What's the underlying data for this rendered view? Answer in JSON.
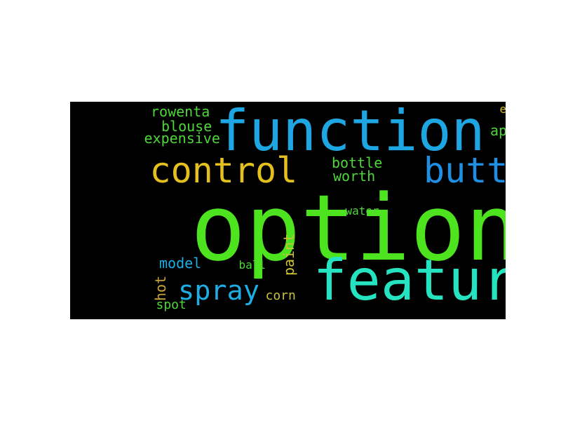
{
  "background_color": "#000000",
  "words": [
    {
      "id": "option",
      "text": "option",
      "color": "#4de31e"
    },
    {
      "id": "function",
      "text": "function",
      "color": "#1ea6e3"
    },
    {
      "id": "feature",
      "text": "feature",
      "color": "#25e3c0"
    },
    {
      "id": "control",
      "text": "control",
      "color": "#e3c01e"
    },
    {
      "id": "button",
      "text": "button",
      "color": "#1e8fe3"
    },
    {
      "id": "spray",
      "text": "spray",
      "color": "#1eaee3"
    },
    {
      "id": "rowenta",
      "text": "rowenta",
      "color": "#4ed63a"
    },
    {
      "id": "blouse",
      "text": "blouse",
      "color": "#4ed63a"
    },
    {
      "id": "expensive",
      "text": "expensive",
      "color": "#4ed63a"
    },
    {
      "id": "experience",
      "text": "experience",
      "color": "#d8c53a"
    },
    {
      "id": "appliance",
      "text": "appliance",
      "color": "#4ed63a"
    },
    {
      "id": "bottle",
      "text": "bottle",
      "color": "#4ed63a"
    },
    {
      "id": "worth",
      "text": "worth",
      "color": "#4ed63a"
    },
    {
      "id": "water",
      "text": "water",
      "color": "#4ed63a"
    },
    {
      "id": "paint",
      "text": "paint",
      "color": "#c9c23a"
    },
    {
      "id": "model",
      "text": "model",
      "color": "#1eaee3"
    },
    {
      "id": "ball",
      "text": "ball",
      "color": "#4ed63a"
    },
    {
      "id": "hot",
      "text": "hot",
      "color": "#c9a53a"
    },
    {
      "id": "corn",
      "text": "corn",
      "color": "#c9c23a"
    },
    {
      "id": "spot",
      "text": "spot",
      "color": "#4ed63a"
    }
  ]
}
